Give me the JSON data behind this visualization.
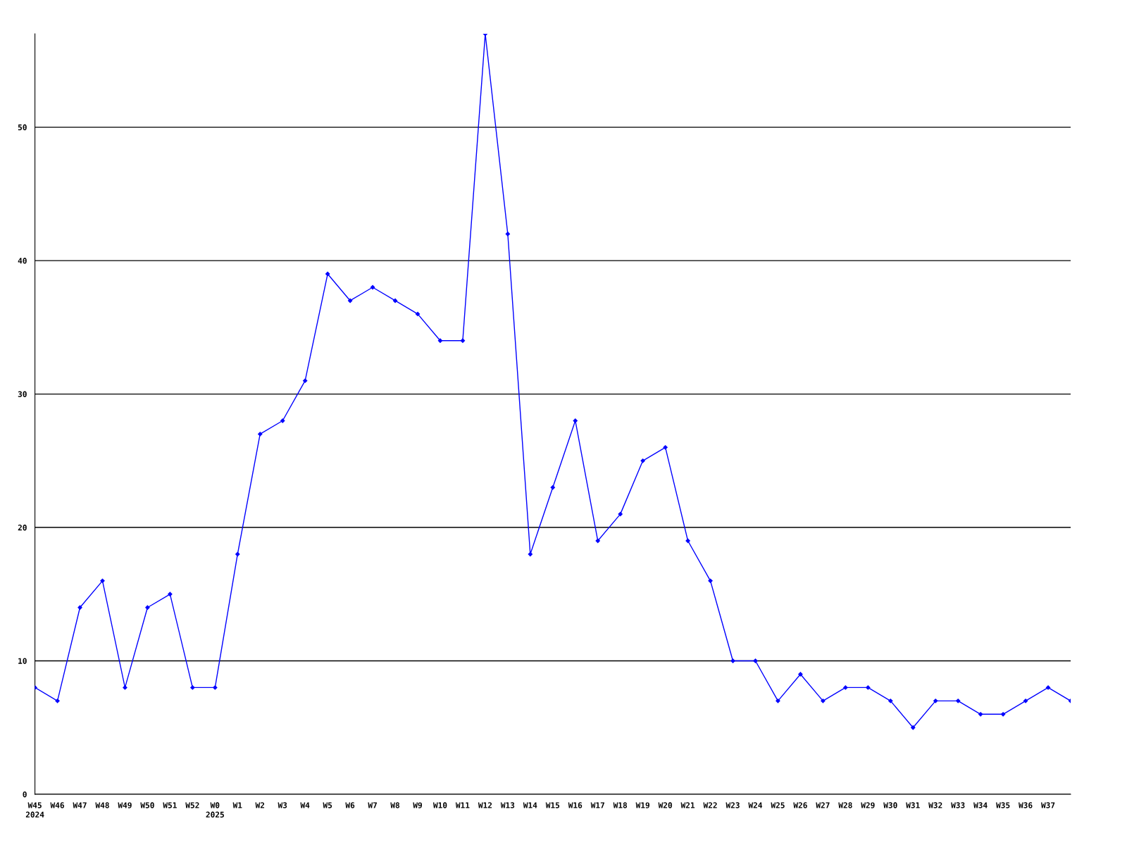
{
  "chart_data": {
    "type": "line",
    "categories": [
      "W45\n2024",
      "W46",
      "W47",
      "W48",
      "W49",
      "W50",
      "W51",
      "W52",
      "W0\n2025",
      "W1",
      "W2",
      "W3",
      "W4",
      "W5",
      "W6",
      "W7",
      "W8",
      "W9",
      "W10",
      "W11",
      "W12",
      "W13",
      "W14",
      "W15",
      "W16",
      "W17",
      "W18",
      "W19",
      "W20",
      "W21",
      "W22",
      "W23",
      "W24",
      "W25",
      "W26",
      "W27",
      "W28",
      "W29",
      "W30",
      "W31",
      "W32",
      "W33",
      "W34",
      "W35",
      "W36",
      "W37",
      null
    ],
    "series": [
      {
        "color": "#0000ff",
        "values": [
          8,
          7,
          14,
          16,
          8,
          14,
          15,
          8,
          8,
          18,
          27,
          28,
          31,
          39,
          37,
          38,
          37,
          36,
          34,
          34,
          57,
          42,
          18,
          23,
          28,
          19,
          21,
          25,
          26,
          19,
          16,
          10,
          10,
          7,
          9,
          7,
          8,
          8,
          7,
          5,
          7,
          7,
          6,
          6,
          7,
          8,
          7
        ]
      }
    ],
    "ylim": [
      0,
      57
    ],
    "yticks": [
      0,
      10,
      20,
      30,
      40,
      50
    ],
    "grid": "y",
    "marker": "diamond",
    "line_style": "solid"
  }
}
